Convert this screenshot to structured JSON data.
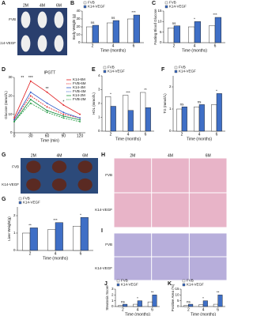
{
  "chart_data": [
    {
      "type": "bar",
      "panel": "B",
      "ylabel": "Body Weight (g)",
      "xlabel": "Time (months)",
      "categories": [
        "2",
        "4",
        "6"
      ],
      "series": [
        {
          "name": "FVB",
          "color": "#ffffff",
          "values": [
            20,
            25,
            30
          ]
        },
        {
          "name": "K14-VEGF",
          "color": "#3f6fc6",
          "values": [
            22,
            28,
            35
          ]
        }
      ],
      "annotations": [
        "ns",
        "ns",
        "***"
      ],
      "ylim": [
        0,
        40
      ],
      "yticks": [
        0,
        10,
        20,
        30,
        40
      ],
      "legend": "top-left"
    },
    {
      "type": "bar",
      "panel": "C",
      "ylabel": "Fasting Blood Glucose",
      "xlabel": "Time (months)",
      "categories": [
        "2",
        "4",
        "6"
      ],
      "series": [
        {
          "name": "FVB",
          "color": "#ffffff",
          "values": [
            7,
            7.5,
            8
          ]
        },
        {
          "name": "K14-VEGF",
          "color": "#3f6fc6",
          "values": [
            8,
            10,
            12
          ]
        }
      ],
      "annotations": [
        "ns",
        "*",
        "***"
      ],
      "ylim": [
        0,
        15
      ],
      "yticks": [
        0,
        5,
        10,
        15
      ],
      "legend": "top-left"
    },
    {
      "type": "line",
      "panel": "D",
      "title": "IPGTT",
      "ylabel": "Glucose (mmol/L)",
      "xlabel": "Time (min)",
      "x": [
        0,
        30,
        60,
        90,
        120
      ],
      "series": [
        {
          "name": "K14-6M",
          "color": "#e0191c",
          "dashed": false,
          "values": [
            8,
            28,
            22,
            15,
            10
          ]
        },
        {
          "name": "FVB-6M",
          "color": "#e0191c",
          "dashed": true,
          "values": [
            7,
            20,
            14,
            10,
            8
          ]
        },
        {
          "name": "K14-4M",
          "color": "#2a57c8",
          "dashed": false,
          "values": [
            7,
            22,
            16,
            11,
            8
          ]
        },
        {
          "name": "FVB-4M",
          "color": "#2a57c8",
          "dashed": true,
          "values": [
            6,
            18,
            12,
            9,
            7
          ]
        },
        {
          "name": "K14-2M",
          "color": "#1e9a3a",
          "dashed": false,
          "values": [
            6,
            18,
            12,
            9,
            7
          ]
        },
        {
          "name": "FVB-2M",
          "color": "#1e9a3a",
          "dashed": true,
          "values": [
            6,
            16,
            11,
            8,
            6
          ]
        }
      ],
      "annotations": [
        {
          "x": 15,
          "text": "**"
        },
        {
          "x": 30,
          "text": "***"
        },
        {
          "x": 60,
          "text": "**"
        },
        {
          "x": 90,
          "text": "*"
        }
      ],
      "xlim": [
        0,
        130
      ],
      "xticks": [
        0,
        30,
        60,
        90,
        120
      ],
      "ylim": [
        0,
        30
      ],
      "yticks": [
        0,
        10,
        20,
        30
      ],
      "legend": "top-right"
    },
    {
      "type": "bar",
      "panel": "E",
      "ylabel": "HDL (mmol/L)",
      "xlabel": "Time (months)",
      "categories": [
        "2",
        "4",
        "6"
      ],
      "series": [
        {
          "name": "FVB",
          "color": "#ffffff",
          "values": [
            2.5,
            2.6,
            2.8
          ]
        },
        {
          "name": "K14-VEGF",
          "color": "#3f6fc6",
          "values": [
            1.8,
            1.5,
            1.7
          ]
        }
      ],
      "annotations": [
        "*",
        "***",
        "**"
      ],
      "ylim": [
        0,
        4
      ],
      "yticks": [
        0,
        1,
        2,
        3,
        4
      ],
      "legend": "top-left"
    },
    {
      "type": "bar",
      "panel": "F",
      "ylabel": "TG (mmol/L)",
      "xlabel": "Time (months)",
      "categories": [
        "2",
        "4",
        "6"
      ],
      "series": [
        {
          "name": "FVB",
          "color": "#ffffff",
          "values": [
            1.0,
            1.1,
            1.2
          ]
        },
        {
          "name": "K14-VEGF",
          "color": "#3f6fc6",
          "values": [
            1.1,
            1.2,
            1.7
          ]
        }
      ],
      "annotations": [
        "ns",
        "ns",
        "*"
      ],
      "ylim": [
        0,
        2.5
      ],
      "yticks": [
        0,
        1,
        2
      ],
      "legend": "top-left"
    },
    {
      "type": "bar",
      "panel": "G",
      "ylabel": "Liver Weight(g)",
      "xlabel": "Time (months)",
      "categories": [
        "2",
        "4",
        "6"
      ],
      "series": [
        {
          "name": "FVB",
          "color": "#ffffff",
          "values": [
            1.0,
            1.2,
            1.4
          ]
        },
        {
          "name": "K14-VEGF",
          "color": "#3f6fc6",
          "values": [
            1.3,
            1.6,
            1.9
          ]
        }
      ],
      "annotations": [
        "**",
        "***",
        "*"
      ],
      "ylim": [
        0,
        2.5
      ],
      "yticks": [
        0,
        1,
        2
      ],
      "legend": "top-left"
    },
    {
      "type": "bar",
      "panel": "J",
      "ylabel": "Steatosis Score",
      "xlabel": "Time (months)",
      "categories": [
        "2",
        "4",
        "6"
      ],
      "series": [
        {
          "name": "FVB",
          "color": "#ffffff",
          "values": [
            0.2,
            0.4,
            0.8
          ]
        },
        {
          "name": "K14-VEGF",
          "color": "#3f6fc6",
          "values": [
            0.4,
            1.0,
            2.0
          ]
        }
      ],
      "annotations": [
        "ns",
        "*",
        "**"
      ],
      "ylim": [
        0,
        3
      ],
      "yticks": [
        0,
        1,
        2,
        3
      ],
      "legend": "top-left"
    },
    {
      "type": "bar",
      "panel": "K",
      "ylabel": "Positive Area (%)",
      "xlabel": "Time (months)",
      "categories": [
        "2",
        "4",
        "6"
      ],
      "series": [
        {
          "name": "FVB",
          "color": "#ffffff",
          "values": [
            1,
            1.5,
            2
          ]
        },
        {
          "name": "K14-VEGF",
          "color": "#3f6fc6",
          "values": [
            2,
            5,
            10
          ]
        }
      ],
      "annotations": [
        "ns",
        "*",
        "**"
      ],
      "ylim": [
        0,
        15
      ],
      "yticks": [
        0,
        5,
        10,
        15
      ],
      "legend": "top-left"
    }
  ],
  "figure": {
    "photos": [
      {
        "panel": "A",
        "columns": [
          "2M",
          "4M",
          "6M"
        ],
        "rows": [
          "FVB",
          "K14-VEGF"
        ]
      },
      {
        "panel": "G",
        "columns": [
          "2M",
          "4M",
          "6M"
        ],
        "rows": [
          "FVB",
          "K14-VEGF"
        ]
      },
      {
        "panel": "H",
        "columns": [
          "2M",
          "4M",
          "6M"
        ],
        "rows": [
          "FVB",
          "K14-VEGF"
        ]
      },
      {
        "panel": "I",
        "rows": [
          "FVB",
          "K14-VEGF"
        ]
      }
    ]
  }
}
